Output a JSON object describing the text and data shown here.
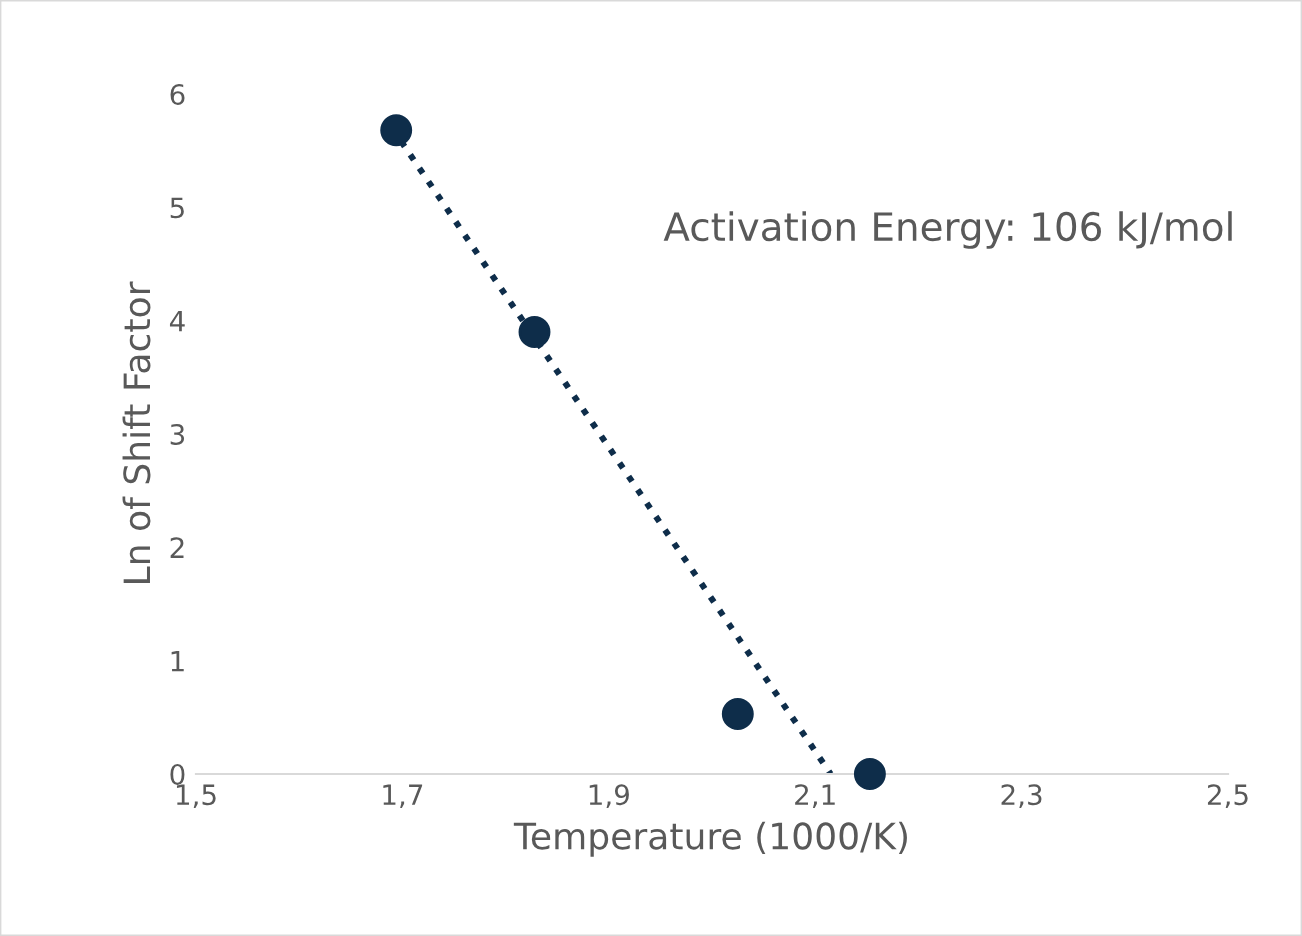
{
  "chart_data": {
    "type": "scatter",
    "xlabel": "Temperature (1000/K)",
    "ylabel": "Ln of Shift Factor",
    "series": [
      {
        "color": "#0e2d4a",
        "x": [
          1.694,
          1.828,
          2.025,
          2.153
        ],
        "values": [
          5.68,
          3.9,
          0.53,
          0
        ],
        "marker": "circle"
      },
      {
        "type": "line",
        "color": "#0e2d4a",
        "x": [
          1.69,
          2.115
        ],
        "values": [
          5.7,
          0
        ],
        "line_style": "dotted",
        "marker": "none"
      }
    ],
    "annotations": [
      "Activation Energy: 106 kJ/mol"
    ],
    "xlim": [
      1.5,
      2.5
    ],
    "ylim": [
      0,
      6
    ],
    "xticks": [
      {
        "value": 1.5,
        "label": "1,5"
      },
      {
        "value": 1.7,
        "label": "1,7"
      },
      {
        "value": 1.9,
        "label": "1,9"
      },
      {
        "value": 2.1,
        "label": "2,1"
      },
      {
        "value": 2.3,
        "label": "2,3"
      },
      {
        "value": 2.5,
        "label": "2,5"
      }
    ],
    "yticks": [
      0,
      1,
      2,
      3,
      4,
      5,
      6
    ],
    "grid": false,
    "legend": false
  }
}
